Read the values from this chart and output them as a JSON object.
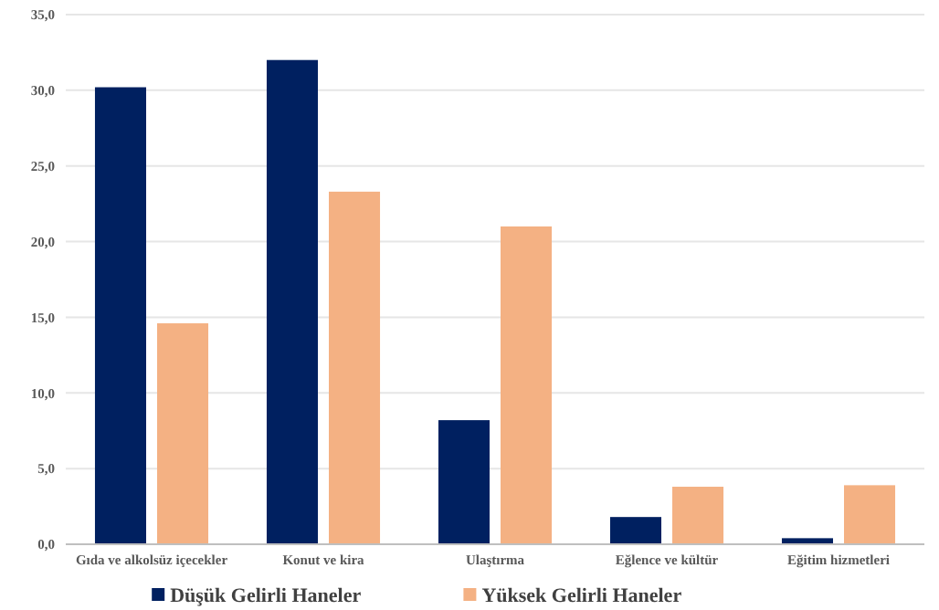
{
  "chart_data": {
    "type": "bar",
    "categories": [
      "Gıda ve alkolsüz içecekler",
      "Konut ve kira",
      "Ulaştırma",
      "Eğlence ve kültür",
      "Eğitim hizmetleri"
    ],
    "series": [
      {
        "name": "Düşük Gelirli Haneler",
        "color": "#002060",
        "values": [
          30.2,
          32.0,
          8.2,
          1.8,
          0.4
        ]
      },
      {
        "name": "Yüksek Gelirli Haneler",
        "color": "#f4b183",
        "values": [
          14.6,
          23.3,
          21.0,
          3.8,
          3.9
        ]
      }
    ],
    "ylim": [
      0,
      35
    ],
    "yticks": [
      {
        "value": 0,
        "label": "0,0"
      },
      {
        "value": 5,
        "label": "5,0"
      },
      {
        "value": 10,
        "label": "10,0"
      },
      {
        "value": 15,
        "label": "15,0"
      },
      {
        "value": 20,
        "label": "20,0"
      },
      {
        "value": 25,
        "label": "25,0"
      },
      {
        "value": 30,
        "label": "30,0"
      },
      {
        "value": 35,
        "label": "35,0"
      }
    ],
    "grid": "y",
    "legend": "bottom"
  }
}
